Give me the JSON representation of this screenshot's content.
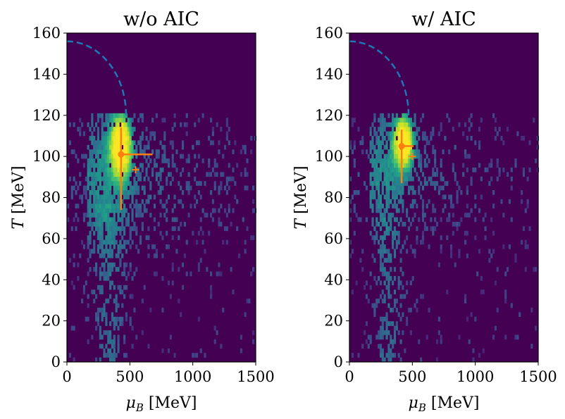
{
  "chart_data": [
    {
      "type": "heatmap",
      "title": "w/o AIC",
      "xlabel": "μ_B [MeV]",
      "xlabel_parts": {
        "symbol": "μ",
        "subscript": "B",
        "unit": " [MeV]"
      },
      "ylabel": "T [MeV]",
      "ylabel_parts": {
        "symbol": "T",
        "unit": " [MeV]"
      },
      "xlim": [
        0,
        1500
      ],
      "ylim": [
        0,
        160
      ],
      "xticks": [
        0,
        500,
        1000,
        1500
      ],
      "yticks": [
        0,
        20,
        40,
        60,
        80,
        100,
        120,
        140,
        160
      ],
      "xtick_labels": [
        "0",
        "500",
        "1000",
        "1500"
      ],
      "ytick_labels": [
        "0",
        "20",
        "40",
        "60",
        "80",
        "100",
        "120",
        "140",
        "160"
      ],
      "density": {
        "peak_muB": 420,
        "peak_T": 104,
        "peak_sigma_muB": 55,
        "peak_sigma_T": 10,
        "spread_T_center": 88,
        "spread_sigma_T": 20,
        "spread_muB_decay": 600,
        "tail_muB": 330,
        "tail_sigma_muB": 90,
        "tail_T_max": 75,
        "T_cut": 120,
        "seed": 7
      },
      "phase_boundary": {
        "T0": 156,
        "muB_end": 470,
        "T_end": 120
      },
      "error_bar": {
        "muB": 430,
        "T": 101,
        "muB_minus": 0,
        "muB_plus": 250,
        "T_minus": 27,
        "T_plus": 13
      },
      "plus_marker": {
        "muB": 545,
        "T": 93.5
      }
    },
    {
      "type": "heatmap",
      "title": "w/ AIC",
      "xlabel": "μ_B [MeV]",
      "xlabel_parts": {
        "symbol": "μ",
        "subscript": "B",
        "unit": " [MeV]"
      },
      "ylabel": "T [MeV]",
      "ylabel_parts": {
        "symbol": "T",
        "unit": " [MeV]"
      },
      "xlim": [
        0,
        1500
      ],
      "ylim": [
        0,
        160
      ],
      "xticks": [
        0,
        500,
        1000,
        1500
      ],
      "yticks": [
        0,
        20,
        40,
        60,
        80,
        100,
        120,
        140,
        160
      ],
      "xtick_labels": [
        "0",
        "500",
        "1000",
        "1500"
      ],
      "ytick_labels": [
        "0",
        "20",
        "40",
        "60",
        "80",
        "100",
        "120",
        "140",
        "160"
      ],
      "density": {
        "peak_muB": 420,
        "peak_T": 106,
        "peak_sigma_muB": 50,
        "peak_sigma_T": 8,
        "spread_T_center": 90,
        "spread_sigma_T": 18,
        "spread_muB_decay": 450,
        "tail_muB": 300,
        "tail_sigma_muB": 80,
        "tail_T_max": 70,
        "T_cut": 120,
        "seed": 11
      },
      "phase_boundary": {
        "T0": 156,
        "muB_end": 470,
        "T_end": 120
      },
      "error_bar": {
        "muB": 415,
        "T": 105,
        "muB_minus": 0,
        "muB_plus": 95,
        "T_minus": 18,
        "T_plus": 8
      },
      "plus_marker": {
        "muB": 500,
        "T": 100
      }
    }
  ],
  "colors": {
    "background": "#440154",
    "boundary": "#1f77b4",
    "marker": "#ff7f0e"
  }
}
